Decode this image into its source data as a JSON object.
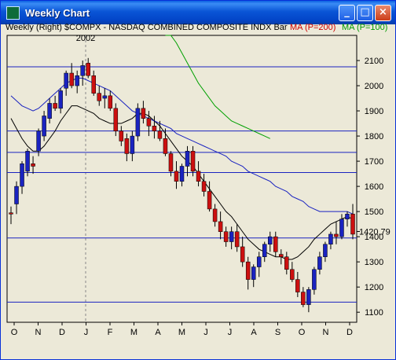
{
  "window": {
    "title": "Weekly Chart",
    "buttons": [
      "minimize",
      "maximize",
      "close"
    ]
  },
  "legend": {
    "main": "Weekly  (Right)  $COMPX - NASDAQ COMBINED COMPOSITE INDX Bar",
    "ma200": "MA (P=200)",
    "ma100": "MA (P=100)"
  },
  "colors": {
    "up": "#1a23c0",
    "down": "#cc1010",
    "ma_short": "#000000",
    "ma_medium": "#1a23c0",
    "ma100": "#00a000",
    "hline": "#1a23c0"
  },
  "chart_data": {
    "type": "candlestick",
    "year_marker": "2002",
    "last_price": "1420.79",
    "y_ticks": [
      1100,
      1200,
      1300,
      1400,
      1500,
      1600,
      1700,
      1800,
      1900,
      2000,
      2100
    ],
    "ylim": [
      1060,
      2200
    ],
    "x_labels": [
      "O",
      "N",
      "D",
      "J",
      "F",
      "M",
      "A",
      "M",
      "J",
      "J",
      "A",
      "S",
      "O",
      "N",
      "D"
    ],
    "hlines": [
      2075,
      1820,
      1735,
      1655,
      1395,
      1140
    ],
    "candles": [
      [
        1495,
        1520,
        1450,
        1490
      ],
      [
        1530,
        1620,
        1490,
        1600
      ],
      [
        1600,
        1700,
        1570,
        1690
      ],
      [
        1660,
        1750,
        1640,
        1740
      ],
      [
        1690,
        1720,
        1650,
        1680
      ],
      [
        1740,
        1830,
        1720,
        1820
      ],
      [
        1800,
        1900,
        1780,
        1880
      ],
      [
        1870,
        1950,
        1850,
        1930
      ],
      [
        1930,
        1960,
        1900,
        1910
      ],
      [
        1910,
        1990,
        1890,
        1980
      ],
      [
        1990,
        2060,
        1960,
        2050
      ],
      [
        2050,
        2090,
        1990,
        2000
      ],
      [
        2000,
        2060,
        1970,
        2040
      ],
      [
        2040,
        2100,
        2000,
        2080
      ],
      [
        2090,
        2110,
        2030,
        2040
      ],
      [
        2040,
        2060,
        1960,
        1970
      ],
      [
        1970,
        2000,
        1920,
        1940
      ],
      [
        1950,
        1990,
        1910,
        1960
      ],
      [
        1960,
        1980,
        1900,
        1910
      ],
      [
        1910,
        1930,
        1800,
        1820
      ],
      [
        1820,
        1840,
        1760,
        1780
      ],
      [
        1790,
        1810,
        1700,
        1730
      ],
      [
        1730,
        1820,
        1700,
        1800
      ],
      [
        1800,
        1930,
        1780,
        1910
      ],
      [
        1910,
        1940,
        1850,
        1870
      ],
      [
        1870,
        1900,
        1800,
        1840
      ],
      [
        1840,
        1880,
        1790,
        1820
      ],
      [
        1820,
        1860,
        1780,
        1790
      ],
      [
        1790,
        1830,
        1720,
        1730
      ],
      [
        1730,
        1740,
        1640,
        1660
      ],
      [
        1660,
        1700,
        1590,
        1620
      ],
      [
        1620,
        1690,
        1600,
        1680
      ],
      [
        1680,
        1760,
        1640,
        1740
      ],
      [
        1740,
        1760,
        1640,
        1660
      ],
      [
        1660,
        1700,
        1600,
        1620
      ],
      [
        1620,
        1650,
        1560,
        1580
      ],
      [
        1580,
        1620,
        1500,
        1510
      ],
      [
        1510,
        1530,
        1440,
        1460
      ],
      [
        1460,
        1500,
        1390,
        1420
      ],
      [
        1420,
        1440,
        1360,
        1380
      ],
      [
        1380,
        1440,
        1350,
        1420
      ],
      [
        1420,
        1450,
        1340,
        1360
      ],
      [
        1360,
        1400,
        1280,
        1300
      ],
      [
        1300,
        1320,
        1190,
        1230
      ],
      [
        1230,
        1290,
        1200,
        1280
      ],
      [
        1280,
        1340,
        1240,
        1320
      ],
      [
        1320,
        1380,
        1300,
        1370
      ],
      [
        1370,
        1420,
        1340,
        1400
      ],
      [
        1400,
        1420,
        1320,
        1340
      ],
      [
        1330,
        1350,
        1290,
        1320
      ],
      [
        1320,
        1340,
        1250,
        1270
      ],
      [
        1270,
        1300,
        1220,
        1230
      ],
      [
        1230,
        1260,
        1160,
        1180
      ],
      [
        1180,
        1200,
        1120,
        1130
      ],
      [
        1130,
        1200,
        1100,
        1190
      ],
      [
        1190,
        1280,
        1170,
        1270
      ],
      [
        1270,
        1340,
        1250,
        1320
      ],
      [
        1320,
        1380,
        1300,
        1370
      ],
      [
        1370,
        1420,
        1350,
        1410
      ],
      [
        1410,
        1460,
        1370,
        1400
      ],
      [
        1400,
        1490,
        1390,
        1470
      ],
      [
        1470,
        1500,
        1440,
        1490
      ],
      [
        1490,
        1530,
        1390,
        1410
      ]
    ],
    "ma_short": [
      1870,
      1830,
      1790,
      1760,
      1740,
      1740,
      1760,
      1790,
      1820,
      1860,
      1890,
      1920,
      1920,
      1910,
      1900,
      1890,
      1870,
      1860,
      1850,
      1850,
      1850,
      1860,
      1870,
      1890,
      1890,
      1880,
      1860,
      1840,
      1810,
      1780,
      1750,
      1720,
      1700,
      1680,
      1650,
      1620,
      1590,
      1560,
      1530,
      1500,
      1480,
      1450,
      1420,
      1390,
      1370,
      1350,
      1340,
      1330,
      1320,
      1320,
      1310,
      1310,
      1320,
      1340,
      1360,
      1390,
      1410,
      1430,
      1450,
      1460,
      1470,
      1480,
      1470
    ],
    "ma_medium": [
      1960,
      1940,
      1920,
      1910,
      1900,
      1910,
      1930,
      1950,
      1970,
      1990,
      2010,
      2020,
      2030,
      2030,
      2020,
      2010,
      2000,
      1990,
      1980,
      1960,
      1940,
      1920,
      1900,
      1890,
      1880,
      1870,
      1860,
      1850,
      1840,
      1830,
      1810,
      1800,
      1790,
      1780,
      1770,
      1760,
      1750,
      1740,
      1730,
      1720,
      1700,
      1690,
      1680,
      1660,
      1650,
      1640,
      1630,
      1620,
      1600,
      1590,
      1580,
      1560,
      1550,
      1540,
      1520,
      1510,
      1500,
      1500,
      1500,
      1500,
      1500,
      1500,
      1490
    ],
    "ma100": [
      2250,
      2210,
      2170,
      2130,
      2090,
      2050,
      2010,
      1980,
      1950,
      1920,
      1900,
      1880,
      1860,
      1850,
      1840,
      1830,
      1820,
      1810,
      1800,
      1790
    ],
    "ma100_start_index": 28
  }
}
